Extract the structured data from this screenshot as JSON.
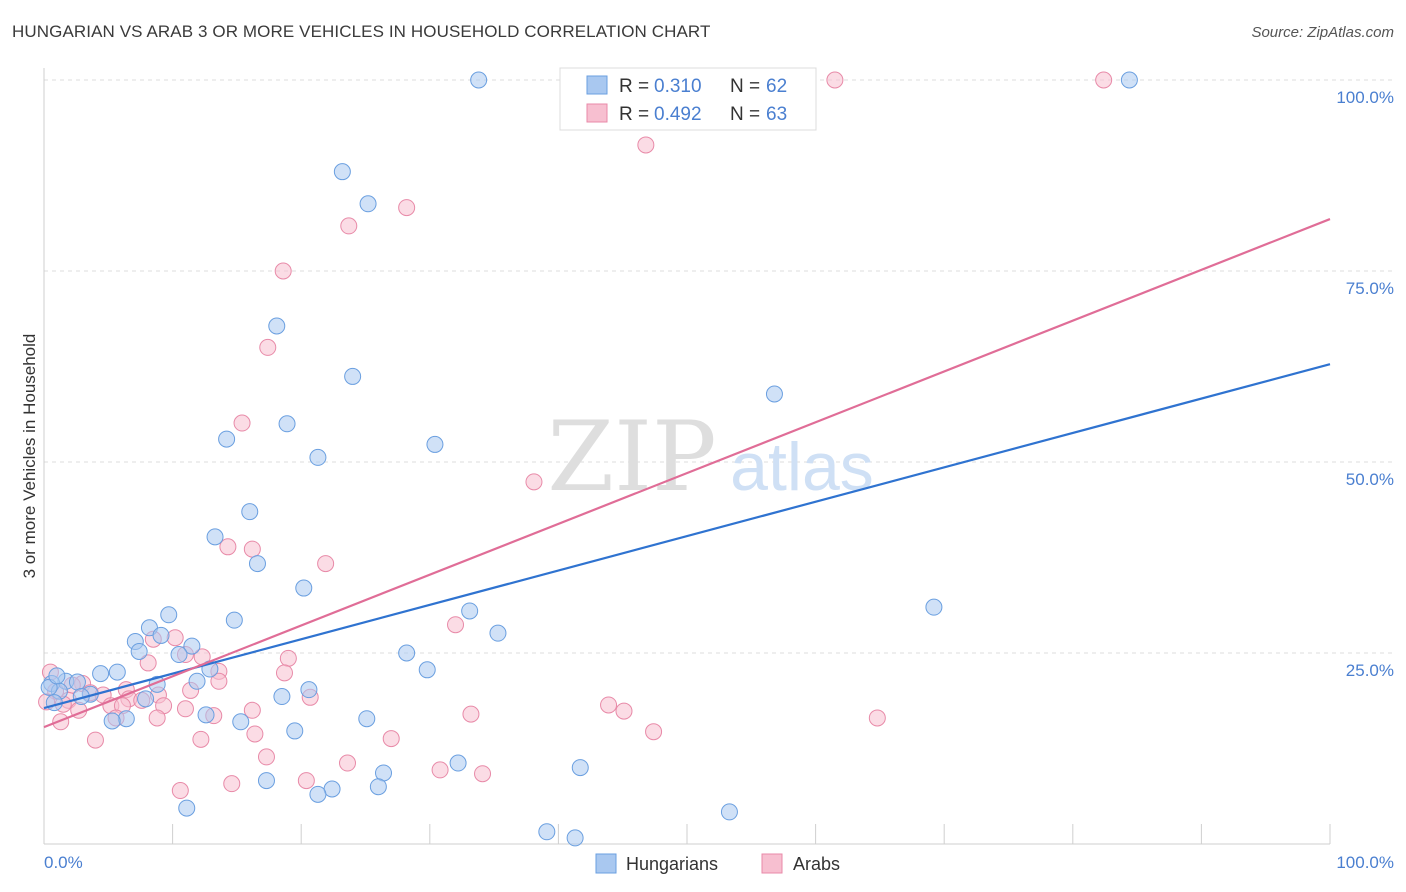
{
  "header": {
    "title": "HUNGARIAN VS ARAB 3 OR MORE VEHICLES IN HOUSEHOLD CORRELATION CHART",
    "source": "Source: ZipAtlas.com"
  },
  "watermark": {
    "zip": "ZIP",
    "atlas": "atlas"
  },
  "colors": {
    "hungarians_fill": "#a9c8f0",
    "hungarians_stroke": "#6a9fe0",
    "hungarians_line": "#2f73d0",
    "arabs_fill": "#f7bfd0",
    "arabs_stroke": "#e88aa8",
    "arabs_line": "#e06d97",
    "axis_text": "#4a7fd0",
    "grid": "#dddddd"
  },
  "legend_top": {
    "rows": [
      {
        "r_label": "R = ",
        "r_value": "0.310",
        "n_label": "N = ",
        "n_value": "62"
      },
      {
        "r_label": "R = ",
        "r_value": "0.492",
        "n_label": "N = ",
        "n_value": "63"
      }
    ]
  },
  "legend_bottom": {
    "items": [
      "Hungarians",
      "Arabs"
    ]
  },
  "chart_data": {
    "type": "scatter",
    "title": "HUNGARIAN VS ARAB 3 OR MORE VEHICLES IN HOUSEHOLD CORRELATION CHART",
    "xlabel": "",
    "ylabel": "3 or more Vehicles in Household",
    "xlim": [
      0,
      100
    ],
    "ylim": [
      0,
      100
    ],
    "x_tick_labels": [
      "0.0%",
      "100.0%"
    ],
    "y_tick_labels": [
      "100.0%",
      "75.0%",
      "50.0%",
      "25.0%"
    ],
    "y_tick_values": [
      100,
      75,
      50,
      25
    ],
    "grid": true,
    "legend_position": "top-center",
    "series": [
      {
        "name": "Hungarians",
        "r": 0.31,
        "n": 62,
        "trend": {
          "x": [
            0,
            100
          ],
          "y": [
            17.8,
            62.8
          ]
        },
        "points": [
          {
            "x": 33.8,
            "y": 100
          },
          {
            "x": 84.4,
            "y": 100
          },
          {
            "x": 23.2,
            "y": 88.0
          },
          {
            "x": 25.2,
            "y": 83.8
          },
          {
            "x": 18.1,
            "y": 67.8
          },
          {
            "x": 24.0,
            "y": 61.2
          },
          {
            "x": 56.8,
            "y": 58.9
          },
          {
            "x": 18.9,
            "y": 55.0
          },
          {
            "x": 14.2,
            "y": 53.0
          },
          {
            "x": 30.4,
            "y": 52.3
          },
          {
            "x": 21.3,
            "y": 50.6
          },
          {
            "x": 16.0,
            "y": 43.5
          },
          {
            "x": 13.3,
            "y": 40.2
          },
          {
            "x": 16.6,
            "y": 36.7
          },
          {
            "x": 20.2,
            "y": 33.5
          },
          {
            "x": 69.2,
            "y": 31.0
          },
          {
            "x": 33.1,
            "y": 30.5
          },
          {
            "x": 9.7,
            "y": 30.0
          },
          {
            "x": 14.8,
            "y": 29.3
          },
          {
            "x": 8.2,
            "y": 28.3
          },
          {
            "x": 35.3,
            "y": 27.6
          },
          {
            "x": 9.1,
            "y": 27.3
          },
          {
            "x": 7.1,
            "y": 26.5
          },
          {
            "x": 11.5,
            "y": 25.9
          },
          {
            "x": 7.4,
            "y": 25.2
          },
          {
            "x": 10.5,
            "y": 24.8
          },
          {
            "x": 28.2,
            "y": 25.0
          },
          {
            "x": 12.9,
            "y": 22.9
          },
          {
            "x": 29.8,
            "y": 22.8
          },
          {
            "x": 5.7,
            "y": 22.5
          },
          {
            "x": 4.4,
            "y": 22.3
          },
          {
            "x": 1.7,
            "y": 21.3
          },
          {
            "x": 2.6,
            "y": 21.2
          },
          {
            "x": 11.9,
            "y": 21.3
          },
          {
            "x": 0.6,
            "y": 21.0
          },
          {
            "x": 8.8,
            "y": 20.9
          },
          {
            "x": 1.2,
            "y": 20.0
          },
          {
            "x": 0.4,
            "y": 20.5
          },
          {
            "x": 20.6,
            "y": 20.2
          },
          {
            "x": 3.6,
            "y": 19.6
          },
          {
            "x": 18.5,
            "y": 19.3
          },
          {
            "x": 2.9,
            "y": 19.3
          },
          {
            "x": 7.9,
            "y": 19.0
          },
          {
            "x": 0.8,
            "y": 18.5
          },
          {
            "x": 12.6,
            "y": 16.9
          },
          {
            "x": 6.4,
            "y": 16.4
          },
          {
            "x": 5.3,
            "y": 16.1
          },
          {
            "x": 25.1,
            "y": 16.4
          },
          {
            "x": 15.3,
            "y": 16.0
          },
          {
            "x": 19.5,
            "y": 14.8
          },
          {
            "x": 32.2,
            "y": 10.6
          },
          {
            "x": 41.7,
            "y": 10.0
          },
          {
            "x": 26.4,
            "y": 9.3
          },
          {
            "x": 17.3,
            "y": 8.3
          },
          {
            "x": 26.0,
            "y": 7.5
          },
          {
            "x": 22.4,
            "y": 7.2
          },
          {
            "x": 21.3,
            "y": 6.5
          },
          {
            "x": 11.1,
            "y": 4.7
          },
          {
            "x": 53.3,
            "y": 4.2
          },
          {
            "x": 39.1,
            "y": 1.6
          },
          {
            "x": 41.3,
            "y": 0.8
          },
          {
            "x": 1.0,
            "y": 22.0
          }
        ]
      },
      {
        "name": "Arabs",
        "r": 0.492,
        "n": 63,
        "trend": {
          "x": [
            0,
            100
          ],
          "y": [
            15.3,
            81.8
          ]
        },
        "points": [
          {
            "x": 61.5,
            "y": 100
          },
          {
            "x": 82.4,
            "y": 100
          },
          {
            "x": 46.8,
            "y": 91.5
          },
          {
            "x": 28.2,
            "y": 83.3
          },
          {
            "x": 23.7,
            "y": 80.9
          },
          {
            "x": 18.6,
            "y": 75.0
          },
          {
            "x": 17.4,
            "y": 65.0
          },
          {
            "x": 15.4,
            "y": 55.1
          },
          {
            "x": 38.1,
            "y": 47.4
          },
          {
            "x": 14.3,
            "y": 38.9
          },
          {
            "x": 16.2,
            "y": 38.6
          },
          {
            "x": 21.9,
            "y": 36.7
          },
          {
            "x": 32.0,
            "y": 28.7
          },
          {
            "x": 10.2,
            "y": 27.0
          },
          {
            "x": 8.5,
            "y": 26.8
          },
          {
            "x": 19.0,
            "y": 24.3
          },
          {
            "x": 12.3,
            "y": 24.5
          },
          {
            "x": 11.0,
            "y": 24.8
          },
          {
            "x": 8.1,
            "y": 23.7
          },
          {
            "x": 13.6,
            "y": 22.6
          },
          {
            "x": 18.7,
            "y": 22.4
          },
          {
            "x": 13.6,
            "y": 21.3
          },
          {
            "x": 0.5,
            "y": 22.5
          },
          {
            "x": 3.0,
            "y": 21.0
          },
          {
            "x": 2.2,
            "y": 20.8
          },
          {
            "x": 6.4,
            "y": 20.2
          },
          {
            "x": 11.4,
            "y": 20.1
          },
          {
            "x": 0.9,
            "y": 20.0
          },
          {
            "x": 3.6,
            "y": 19.8
          },
          {
            "x": 4.6,
            "y": 19.5
          },
          {
            "x": 8.9,
            "y": 19.5
          },
          {
            "x": 20.7,
            "y": 19.2
          },
          {
            "x": 6.6,
            "y": 19.0
          },
          {
            "x": 1.9,
            "y": 18.8
          },
          {
            "x": 7.6,
            "y": 18.8
          },
          {
            "x": 0.2,
            "y": 18.6
          },
          {
            "x": 1.5,
            "y": 18.3
          },
          {
            "x": 5.2,
            "y": 18.1
          },
          {
            "x": 6.1,
            "y": 18.1
          },
          {
            "x": 9.3,
            "y": 18.1
          },
          {
            "x": 11.0,
            "y": 17.7
          },
          {
            "x": 2.7,
            "y": 17.5
          },
          {
            "x": 16.2,
            "y": 17.5
          },
          {
            "x": 43.9,
            "y": 18.2
          },
          {
            "x": 45.1,
            "y": 17.4
          },
          {
            "x": 33.2,
            "y": 17.0
          },
          {
            "x": 13.2,
            "y": 16.8
          },
          {
            "x": 8.8,
            "y": 16.5
          },
          {
            "x": 5.6,
            "y": 16.5
          },
          {
            "x": 64.8,
            "y": 16.5
          },
          {
            "x": 1.3,
            "y": 16.0
          },
          {
            "x": 47.4,
            "y": 14.7
          },
          {
            "x": 16.4,
            "y": 14.4
          },
          {
            "x": 27.0,
            "y": 13.8
          },
          {
            "x": 12.2,
            "y": 13.7
          },
          {
            "x": 4.0,
            "y": 13.6
          },
          {
            "x": 17.3,
            "y": 11.4
          },
          {
            "x": 23.6,
            "y": 10.6
          },
          {
            "x": 30.8,
            "y": 9.7
          },
          {
            "x": 34.1,
            "y": 9.2
          },
          {
            "x": 20.4,
            "y": 8.3
          },
          {
            "x": 14.6,
            "y": 7.9
          },
          {
            "x": 10.6,
            "y": 7.0
          }
        ]
      }
    ]
  }
}
